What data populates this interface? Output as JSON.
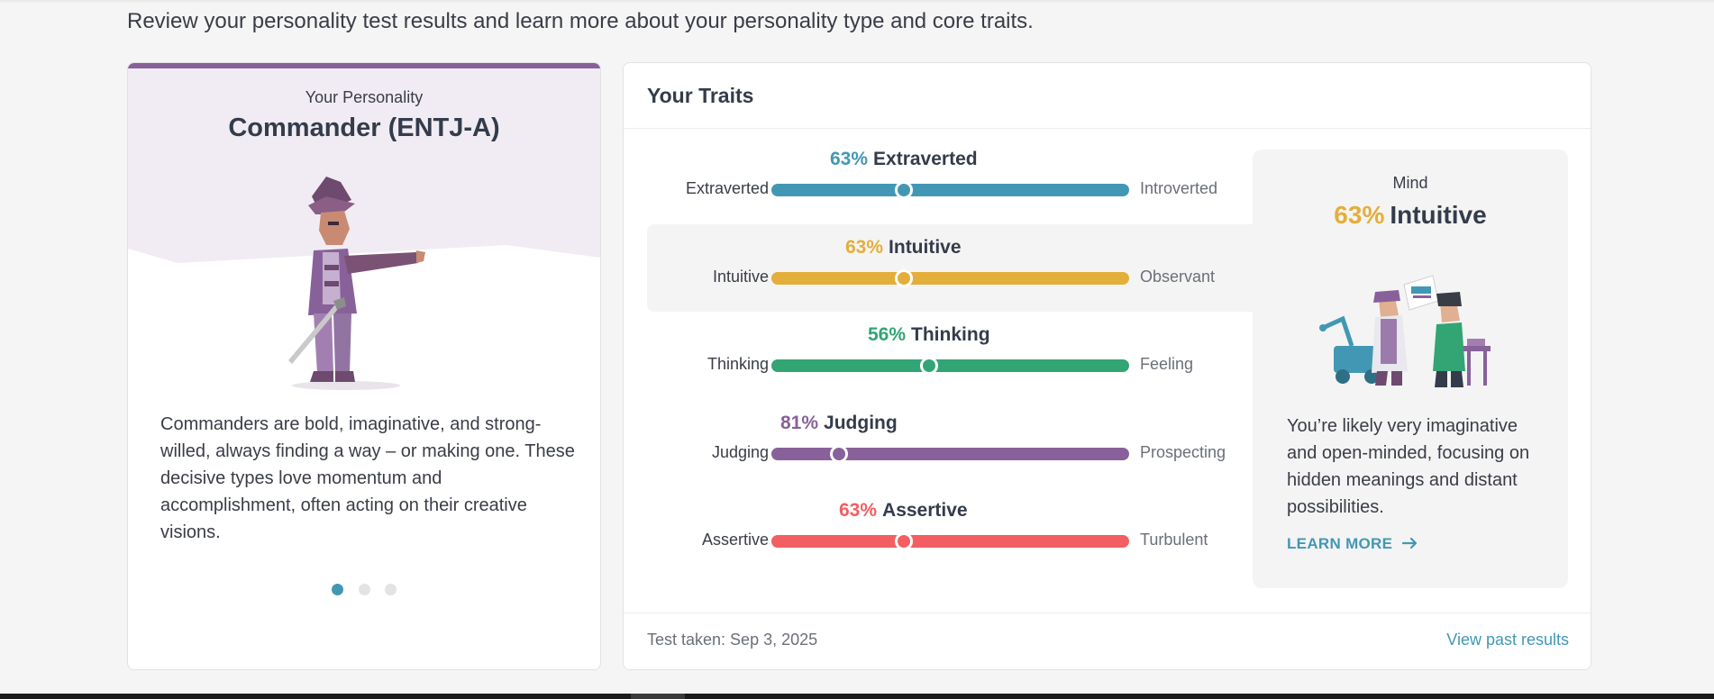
{
  "intro_text": "Review your personality test results and learn more about your personality type and core traits.",
  "personality_card": {
    "label": "Your Personality",
    "title": "Commander (ENTJ-A)",
    "description": "Commanders are bold, imaginative, and strong-willed, always finding a way – or making one. These decisive types love momentum and accomplishment, often acting on their creative visions.",
    "accent_color": "#88619a",
    "carousel": {
      "total": 3,
      "active_index": 0
    }
  },
  "traits_card": {
    "title": "Your Traits",
    "traits": [
      {
        "percent": "63%",
        "name": "Extraverted",
        "left_label": "Extraverted",
        "right_label": "Introverted",
        "color": "#4298b4",
        "position": 0.37
      },
      {
        "percent": "63%",
        "name": "Intuitive",
        "left_label": "Intuitive",
        "right_label": "Observant",
        "color": "#e4ae3a",
        "position": 0.37
      },
      {
        "percent": "56%",
        "name": "Thinking",
        "left_label": "Thinking",
        "right_label": "Feeling",
        "color": "#33a474",
        "position": 0.44
      },
      {
        "percent": "81%",
        "name": "Judging",
        "left_label": "Judging",
        "right_label": "Prospecting",
        "color": "#88619a",
        "position": 0.19
      },
      {
        "percent": "63%",
        "name": "Assertive",
        "left_label": "Assertive",
        "right_label": "Turbulent",
        "color": "#f25e62",
        "position": 0.37
      }
    ],
    "selected_index": 1,
    "detail": {
      "category": "Mind",
      "percent": "63%",
      "name": "Intuitive",
      "description": "You’re likely very imaginative and open-minded, focusing on hidden meanings and distant possibilities.",
      "learn_more": "LEARN MORE"
    },
    "test_taken": "Test taken: Sep 3, 2025",
    "view_past": "View past results"
  }
}
